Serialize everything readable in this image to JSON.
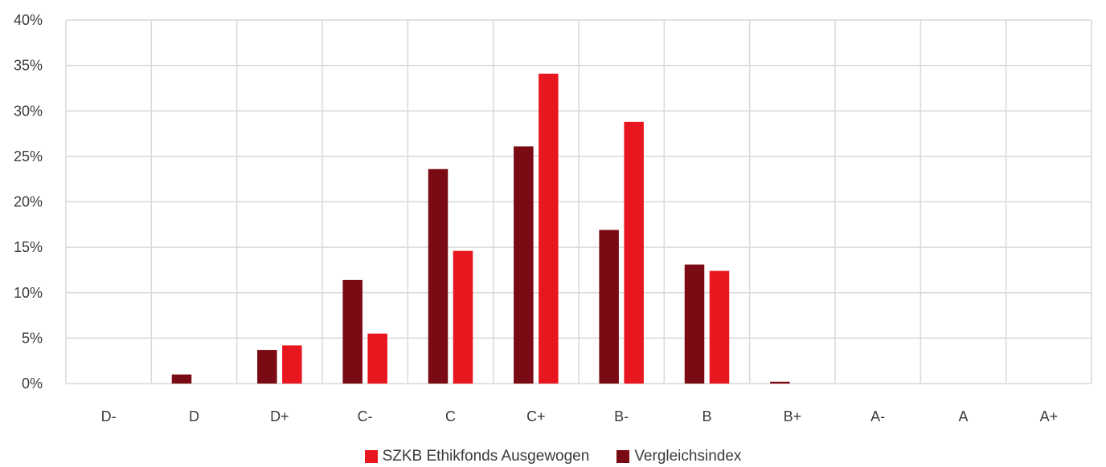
{
  "chart_data": {
    "type": "bar",
    "categories": [
      "D-",
      "D",
      "D+",
      "C-",
      "C",
      "C+",
      "B-",
      "B",
      "B+",
      "A-",
      "A",
      "A+"
    ],
    "series": [
      {
        "name": "Vergleichsindex",
        "color": "#7a0a14",
        "values": [
          0.0,
          1.0,
          3.7,
          11.4,
          23.6,
          26.1,
          16.9,
          13.1,
          0.2,
          0.0,
          0.0,
          0.0
        ]
      },
      {
        "name": "SZKB Ethikfonds Ausgewogen",
        "color": "#e8161e",
        "values": [
          0.0,
          0.0,
          4.2,
          5.5,
          14.6,
          34.1,
          28.8,
          12.4,
          0.0,
          0.0,
          0.0,
          0.0
        ]
      }
    ],
    "y_ticks": [
      "0%",
      "5%",
      "10%",
      "15%",
      "20%",
      "25%",
      "30%",
      "35%",
      "40%"
    ],
    "ylim": [
      0,
      40
    ],
    "grid": "vertical and horizontal",
    "legend_position": "bottom",
    "legend_order": [
      "SZKB Ethikfonds Ausgewogen",
      "Vergleichsindex"
    ]
  }
}
